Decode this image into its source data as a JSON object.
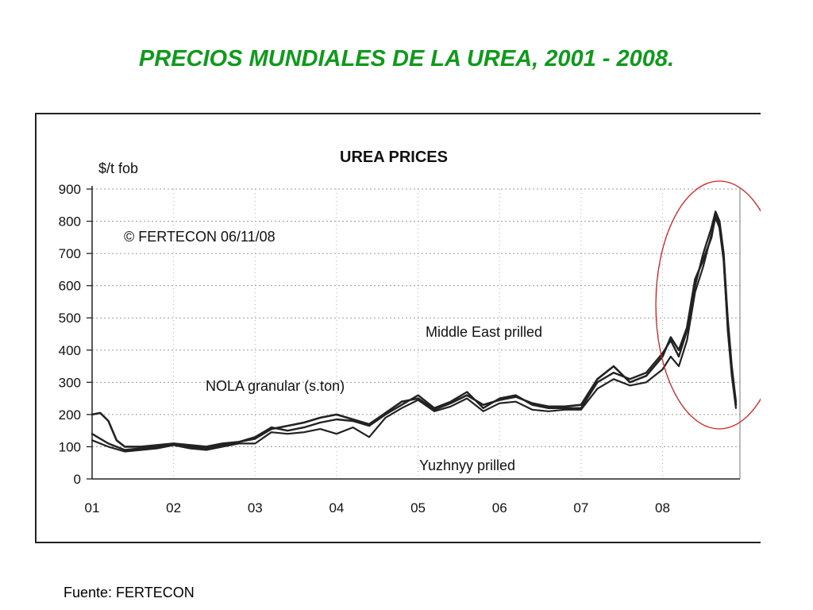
{
  "slide": {
    "title": "PRECIOS MUNDIALES DE LA UREA, 2001 - 2008.",
    "source": "Fuente: FERTECON"
  },
  "colors": {
    "title": "#0f9a1c",
    "highlight_circle": "#d42020",
    "series_line": "#222222"
  },
  "chart_data": {
    "type": "line",
    "title": "UREA PRICES",
    "ylabel": "$/t fob",
    "copyright": "© FERTECON 06/11/08",
    "ylim": [
      0,
      900
    ],
    "xlim": [
      2001,
      2008.95
    ],
    "yticks": [
      0,
      100,
      200,
      300,
      400,
      500,
      600,
      700,
      800,
      900
    ],
    "xtick_labels": [
      "01",
      "02",
      "03",
      "04",
      "05",
      "06",
      "07",
      "08"
    ],
    "xtick_values": [
      2001,
      2002,
      2003,
      2004,
      2005,
      2006,
      2007,
      2008
    ],
    "grid": true,
    "series_labels": [
      {
        "series": "Middle East prilled",
        "text": "Middle East  prilled"
      },
      {
        "series": "NOLA granular (s.ton)",
        "text": "NOLA granular (s.ton)"
      },
      {
        "series": "Yuzhnyy prilled",
        "text": "Yuzhnyy prilled"
      }
    ],
    "annotation": "highlighted 2008 peak",
    "series": [
      {
        "name": "Middle East prilled",
        "x": [
          2001.0,
          2001.2,
          2001.4,
          2001.6,
          2001.8,
          2002.0,
          2002.2,
          2002.4,
          2002.6,
          2002.8,
          2003.0,
          2003.2,
          2003.4,
          2003.6,
          2003.8,
          2004.0,
          2004.2,
          2004.4,
          2004.6,
          2004.8,
          2005.0,
          2005.2,
          2005.4,
          2005.6,
          2005.8,
          2006.0,
          2006.2,
          2006.4,
          2006.6,
          2006.8,
          2007.0,
          2007.2,
          2007.4,
          2007.6,
          2007.8,
          2008.0,
          2008.1,
          2008.2,
          2008.3,
          2008.4,
          2008.5,
          2008.6,
          2008.65,
          2008.7,
          2008.75,
          2008.8,
          2008.85,
          2008.9
        ],
        "y": [
          140,
          110,
          90,
          95,
          100,
          110,
          100,
          95,
          105,
          115,
          130,
          160,
          150,
          160,
          175,
          185,
          180,
          165,
          200,
          230,
          260,
          220,
          240,
          270,
          220,
          250,
          260,
          230,
          220,
          220,
          220,
          300,
          330,
          310,
          330,
          390,
          430,
          380,
          460,
          600,
          700,
          780,
          830,
          800,
          700,
          500,
          350,
          240
        ]
      },
      {
        "name": "NOLA granular (s.ton)",
        "x": [
          2001.0,
          2001.1,
          2001.2,
          2001.3,
          2001.4,
          2001.6,
          2001.8,
          2002.0,
          2002.2,
          2002.4,
          2002.6,
          2002.8,
          2003.0,
          2003.2,
          2003.4,
          2003.6,
          2003.8,
          2004.0,
          2004.2,
          2004.4,
          2004.6,
          2004.8,
          2005.0,
          2005.2,
          2005.4,
          2005.6,
          2005.8,
          2006.0,
          2006.2,
          2006.4,
          2006.6,
          2006.8,
          2007.0,
          2007.2,
          2007.4,
          2007.6,
          2007.8,
          2008.0,
          2008.1,
          2008.2,
          2008.3,
          2008.4,
          2008.5,
          2008.6,
          2008.65,
          2008.7,
          2008.75,
          2008.8,
          2008.85,
          2008.9
        ],
        "y": [
          200,
          205,
          180,
          120,
          100,
          100,
          105,
          110,
          105,
          100,
          110,
          115,
          125,
          155,
          165,
          175,
          190,
          200,
          185,
          170,
          205,
          240,
          250,
          215,
          235,
          260,
          230,
          245,
          255,
          235,
          225,
          225,
          230,
          310,
          350,
          300,
          320,
          380,
          440,
          400,
          470,
          620,
          680,
          750,
          820,
          780,
          680,
          480,
          330,
          230
        ]
      },
      {
        "name": "Yuzhnyy prilled",
        "x": [
          2001.0,
          2001.2,
          2001.4,
          2001.6,
          2001.8,
          2002.0,
          2002.2,
          2002.4,
          2002.6,
          2002.8,
          2003.0,
          2003.2,
          2003.4,
          2003.6,
          2003.8,
          2004.0,
          2004.2,
          2004.4,
          2004.6,
          2004.8,
          2005.0,
          2005.2,
          2005.4,
          2005.6,
          2005.8,
          2006.0,
          2006.2,
          2006.4,
          2006.6,
          2006.8,
          2007.0,
          2007.2,
          2007.4,
          2007.6,
          2007.8,
          2008.0,
          2008.1,
          2008.2,
          2008.3,
          2008.4,
          2008.5,
          2008.6,
          2008.65,
          2008.7,
          2008.75,
          2008.8,
          2008.85,
          2008.9
        ],
        "y": [
          120,
          100,
          85,
          90,
          95,
          105,
          95,
          90,
          100,
          110,
          110,
          145,
          140,
          145,
          155,
          140,
          160,
          130,
          190,
          220,
          245,
          210,
          225,
          250,
          210,
          235,
          240,
          215,
          210,
          215,
          215,
          280,
          310,
          290,
          300,
          340,
          380,
          350,
          430,
          580,
          660,
          760,
          810,
          780,
          680,
          460,
          320,
          220
        ]
      }
    ]
  }
}
